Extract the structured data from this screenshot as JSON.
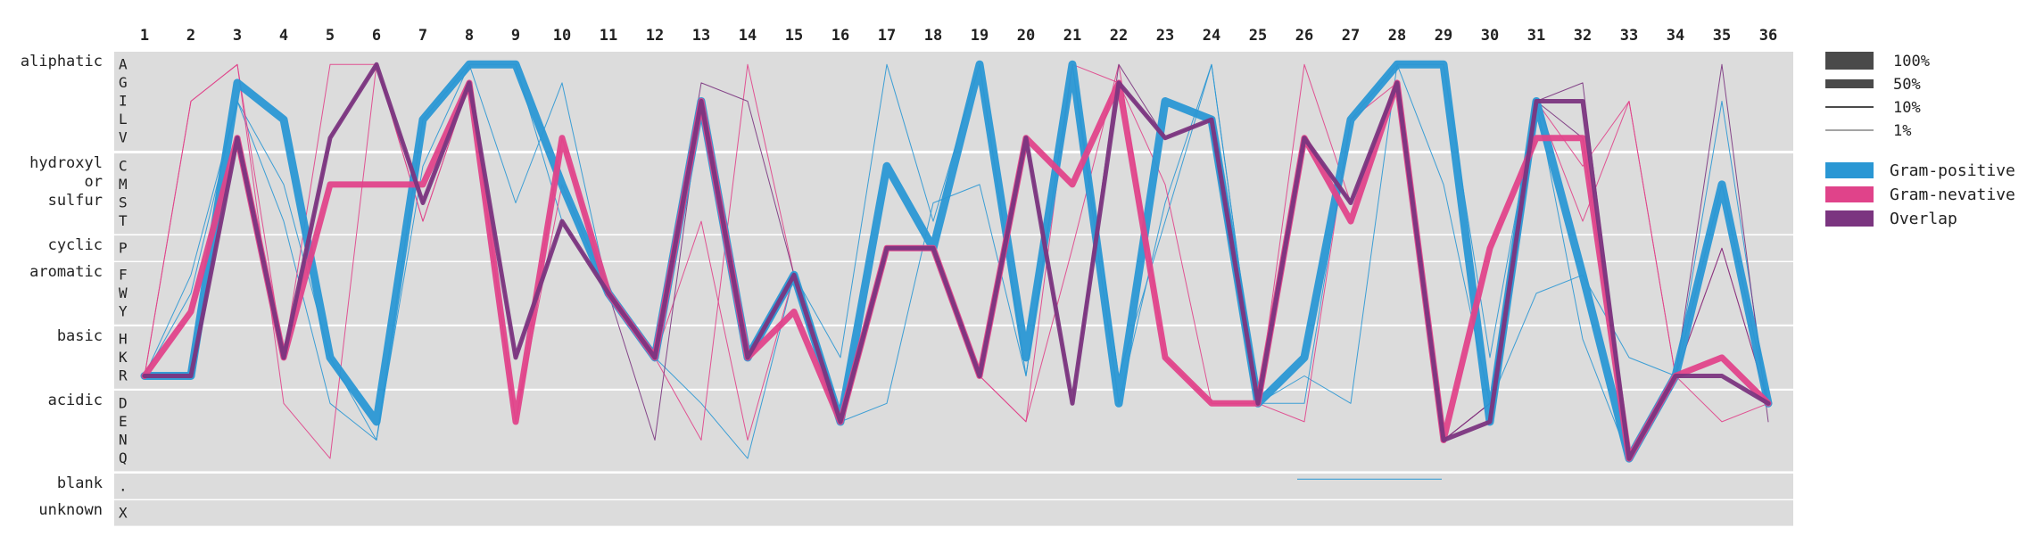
{
  "colors": {
    "band": "#dcdcdc",
    "gram_positive": "#2a97d4",
    "gram_negative": "#e0438a",
    "overlap": "#7b3580",
    "text": "#222222",
    "legend_width": "#4a4a4a"
  },
  "chart_data": {
    "type": "line",
    "positions": [
      "1",
      "2",
      "3",
      "4",
      "5",
      "6",
      "7",
      "8",
      "9",
      "10",
      "11",
      "12",
      "13",
      "14",
      "15",
      "16",
      "17",
      "18",
      "19",
      "20",
      "21",
      "22",
      "23",
      "24",
      "25",
      "26",
      "27",
      "28",
      "29",
      "30",
      "31",
      "32",
      "33",
      "34",
      "35",
      "36"
    ],
    "groups": [
      {
        "label_lines": [
          "aliphatic"
        ],
        "letters": [
          "A",
          "G",
          "I",
          "L",
          "V"
        ]
      },
      {
        "label_lines": [
          "hydroxyl",
          "or",
          "sulfur"
        ],
        "letters": [
          "C",
          "M",
          "S",
          "T"
        ]
      },
      {
        "label_lines": [
          "cyclic"
        ],
        "letters": [
          "P"
        ]
      },
      {
        "label_lines": [
          "aromatic"
        ],
        "letters": [
          "F",
          "W",
          "Y"
        ]
      },
      {
        "label_lines": [
          "basic"
        ],
        "letters": [
          "H",
          "K",
          "R"
        ]
      },
      {
        "label_lines": [
          "acidic"
        ],
        "letters": [
          "D",
          "E",
          "N",
          "Q"
        ]
      },
      {
        "label_lines": [
          "blank"
        ],
        "letters": [
          "."
        ]
      },
      {
        "label_lines": [
          "unknown"
        ],
        "letters": [
          "X"
        ]
      }
    ],
    "width_legend": [
      {
        "label": "100%",
        "fraction": 1.0
      },
      {
        "label": "50%",
        "fraction": 0.5
      },
      {
        "label": "10%",
        "fraction": 0.1
      },
      {
        "label": "1%",
        "fraction": 0.01
      }
    ],
    "series": [
      {
        "name": "Gram-positive",
        "color_key": "gram_positive",
        "main_path": [
          "R",
          "R",
          "G",
          "L",
          "K",
          "E",
          "L",
          "A",
          "A",
          "M",
          "W",
          "K",
          "I",
          "K",
          "F",
          "E",
          "C",
          "P",
          "A",
          "K",
          "A",
          "D",
          "I",
          "L",
          "D",
          "K",
          "L",
          "A",
          "A",
          "E",
          "I",
          "F",
          "Q",
          "R",
          "M",
          "D"
        ],
        "main_fraction": 0.45,
        "minor_paths": [
          {
            "path": [
              "R",
              "F",
              "I",
              "M",
              "K",
              "N",
              "C",
              "A",
              "A",
              "T",
              "W",
              "K",
              "I",
              "K",
              "F",
              "E",
              "D",
              "S",
              "M",
              "R",
              "A",
              "D",
              "S",
              "A",
              "D",
              "D",
              "L",
              "A",
              "M",
              "D",
              "W",
              "F",
              "K",
              "R",
              "M",
              "D"
            ],
            "fraction": 0.02
          },
          {
            "path": [
              "R",
              "W",
              "I",
              "T",
              "D",
              "N",
              "L",
              "A",
              "S",
              "G",
              "W",
              "K",
              "D",
              "Q",
              "F",
              "K",
              "A",
              "T",
              "A",
              "R",
              "A",
              "R",
              "T",
              "A",
              "D",
              "R",
              "D",
              "A",
              "A",
              "K",
              "I",
              "H",
              "Q",
              "R",
              "I",
              "D"
            ],
            "fraction": 0.01
          }
        ]
      },
      {
        "name": "Gram-nevative",
        "color_key": "gram_negative",
        "main_path": [
          "R",
          "Y",
          "V",
          "K",
          "M",
          "M",
          "M",
          "G",
          "E",
          "V",
          "W",
          "K",
          "I",
          "K",
          "Y",
          "E",
          "P",
          "P",
          "R",
          "V",
          "M",
          "G",
          "K",
          "D",
          "D",
          "V",
          "T",
          "G",
          "N",
          "P",
          "V",
          "V",
          "Q",
          "R",
          "K",
          "D"
        ],
        "main_fraction": 0.35,
        "minor_paths": [
          {
            "path": [
              "R",
              "I",
              "A",
              "K",
              "A",
              "A",
              "T",
              "G",
              "E",
              "M",
              "W",
              "K",
              "T",
              "N",
              "F",
              "E",
              "P",
              "P",
              "R",
              "E",
              "P",
              "A",
              "K",
              "D",
              "D",
              "A",
              "S",
              "G",
              "N",
              "D",
              "I",
              "T",
              "I",
              "R",
              "P",
              "D"
            ],
            "fraction": 0.03
          },
          {
            "path": [
              "R",
              "I",
              "A",
              "D",
              "Q",
              "A",
              "T",
              "G",
              "E",
              "V",
              "W",
              "K",
              "N",
              "A",
              "F",
              "E",
              "P",
              "P",
              "R",
              "E",
              "A",
              "G",
              "M",
              "D",
              "D",
              "E",
              "L",
              "G",
              "N",
              "D",
              "I",
              "C",
              "I",
              "R",
              "E",
              "D"
            ],
            "fraction": 0.01
          }
        ]
      },
      {
        "name": "Overlap",
        "color_key": "overlap",
        "main_path": [
          "R",
          "R",
          "V",
          "K",
          "V",
          "A",
          "S",
          "G",
          "K",
          "T",
          "W",
          "K",
          "I",
          "K",
          "F",
          "E",
          "P",
          "P",
          "R",
          "V",
          "D",
          "G",
          "V",
          "L",
          "D",
          "V",
          "S",
          "G",
          "N",
          "E",
          "I",
          "I",
          "Q",
          "R",
          "R",
          "D"
        ],
        "main_fraction": 0.25,
        "minor_paths": [
          {
            "path": [
              "R",
              "R",
              "V",
              "K",
              "V",
              "A",
              "S",
              "G",
              "K",
              "T",
              "W",
              "K",
              "G",
              "I",
              "F",
              "E",
              "P",
              "P",
              "R",
              "V",
              "D",
              "G",
              "V",
              "L",
              "D",
              "V",
              "S",
              "G",
              "N",
              "D",
              "I",
              "V",
              "Q",
              "R",
              "P",
              "D"
            ],
            "fraction": 0.05
          },
          {
            "path": [
              "R",
              "R",
              "V",
              "K",
              "V",
              "A",
              "S",
              "G",
              "K",
              "T",
              "W",
              "N",
              "I",
              "K",
              "F",
              "E",
              "P",
              "P",
              "R",
              "V",
              "D",
              "A",
              "V",
              "L",
              "D",
              "V",
              "S",
              "G",
              "N",
              "D",
              "I",
              "G",
              "Q",
              "R",
              "A",
              "E"
            ],
            "fraction": 0.03
          }
        ]
      }
    ],
    "blank_segment": {
      "from_position": "26",
      "to_position": "29",
      "fraction": 0.01,
      "color_key": "gram_positive"
    }
  }
}
